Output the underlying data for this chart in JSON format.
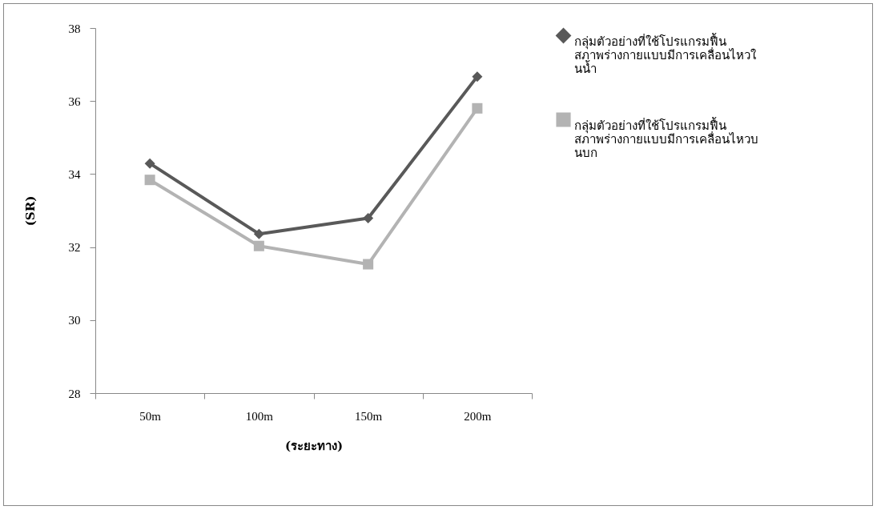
{
  "chart_data": {
    "type": "line",
    "xlabel": "(ระยะทาง)",
    "ylabel": "(SR)",
    "categories": [
      "50m",
      "100m",
      "150m",
      "200m"
    ],
    "series": [
      {
        "name": "กลุ่มตัวอย่างที่ใช้โปรแกรมฟื้นสภาพร่างกายแบบมีการเคลื่อนไหวในน้ำ",
        "color": "#595959",
        "marker": "diamond",
        "values": [
          34.29,
          32.36,
          32.79,
          36.67
        ]
      },
      {
        "name": "กลุ่มตัวอย่างที่ใช้โปรแกรมฟื้นสภาพร่างกายแบบมีการเคลื่อนไหวบนบก",
        "color": "#b3b3b3",
        "marker": "square",
        "values": [
          33.84,
          32.03,
          31.53,
          35.8
        ]
      }
    ],
    "ylim": [
      28,
      38
    ],
    "yticks": [
      28,
      30,
      32,
      34,
      36,
      38
    ],
    "grid": false,
    "legend": "right"
  }
}
